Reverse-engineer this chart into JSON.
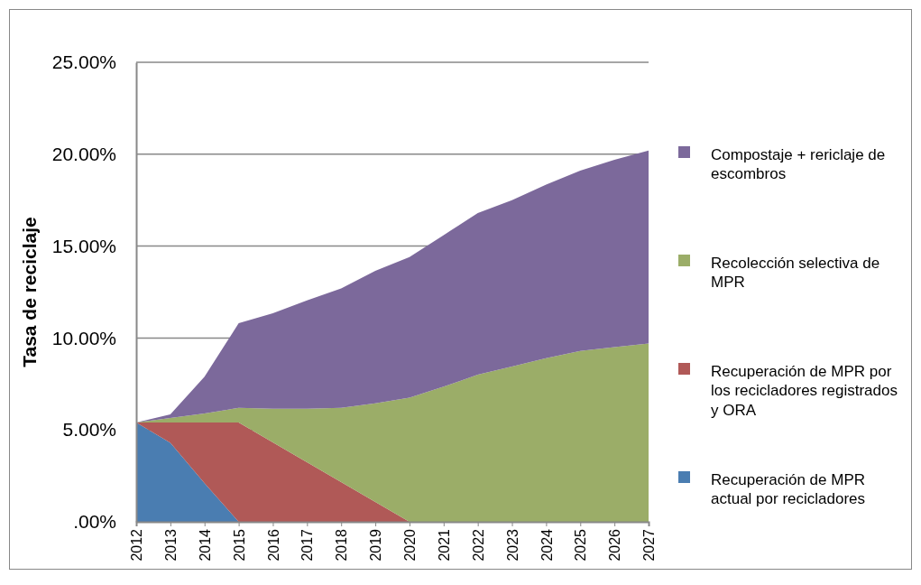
{
  "chart_data": {
    "type": "area",
    "stacked": true,
    "ylabel": "Tasa de reciclaje",
    "categories": [
      "2012",
      "2013",
      "2014",
      "2015",
      "2016",
      "2017",
      "2018",
      "2019",
      "2020",
      "2021",
      "2022",
      "2023",
      "2024",
      "2025",
      "2026",
      "2027"
    ],
    "series": [
      {
        "name": "Recuperación de MPR actual por recicladores",
        "color": "#4a7db1",
        "values": [
          5.4,
          4.3,
          2.1,
          0,
          null,
          null,
          null,
          null,
          null,
          null,
          null,
          null,
          null,
          null,
          null,
          null
        ]
      },
      {
        "name": "Recuperación de MPR por los recicladores registrados y ORA",
        "color": "#b05957",
        "values": [
          0,
          1.1,
          3.3,
          5.4,
          4.32,
          3.24,
          2.16,
          1.08,
          0,
          null,
          null,
          null,
          null,
          null,
          null,
          null
        ]
      },
      {
        "name": "Recolección selectiva de MPR",
        "color": "#9bad68",
        "values": [
          0,
          0.25,
          0.5,
          0.8,
          1.83,
          2.91,
          4.04,
          5.37,
          6.75,
          7.35,
          8.0,
          8.45,
          8.9,
          9.3,
          9.5,
          9.7
        ]
      },
      {
        "name": "Compostaje + rericlaje de escombros",
        "color": "#7c699b",
        "values": [
          0,
          0.2,
          2.0,
          4.6,
          5.2,
          5.9,
          6.5,
          7.2,
          7.65,
          8.25,
          8.8,
          9.05,
          9.45,
          9.8,
          10.2,
          10.5
        ]
      }
    ],
    "ylim": [
      0,
      25
    ],
    "yticks": [
      {
        "value": 0,
        "label": ".00%"
      },
      {
        "value": 5,
        "label": "5.00%"
      },
      {
        "value": 10,
        "label": "10.00%"
      },
      {
        "value": 15,
        "label": "15.00%"
      },
      {
        "value": 20,
        "label": "20.00%"
      },
      {
        "value": 25,
        "label": "25.00%"
      }
    ],
    "grid": "y",
    "legend": "right"
  }
}
